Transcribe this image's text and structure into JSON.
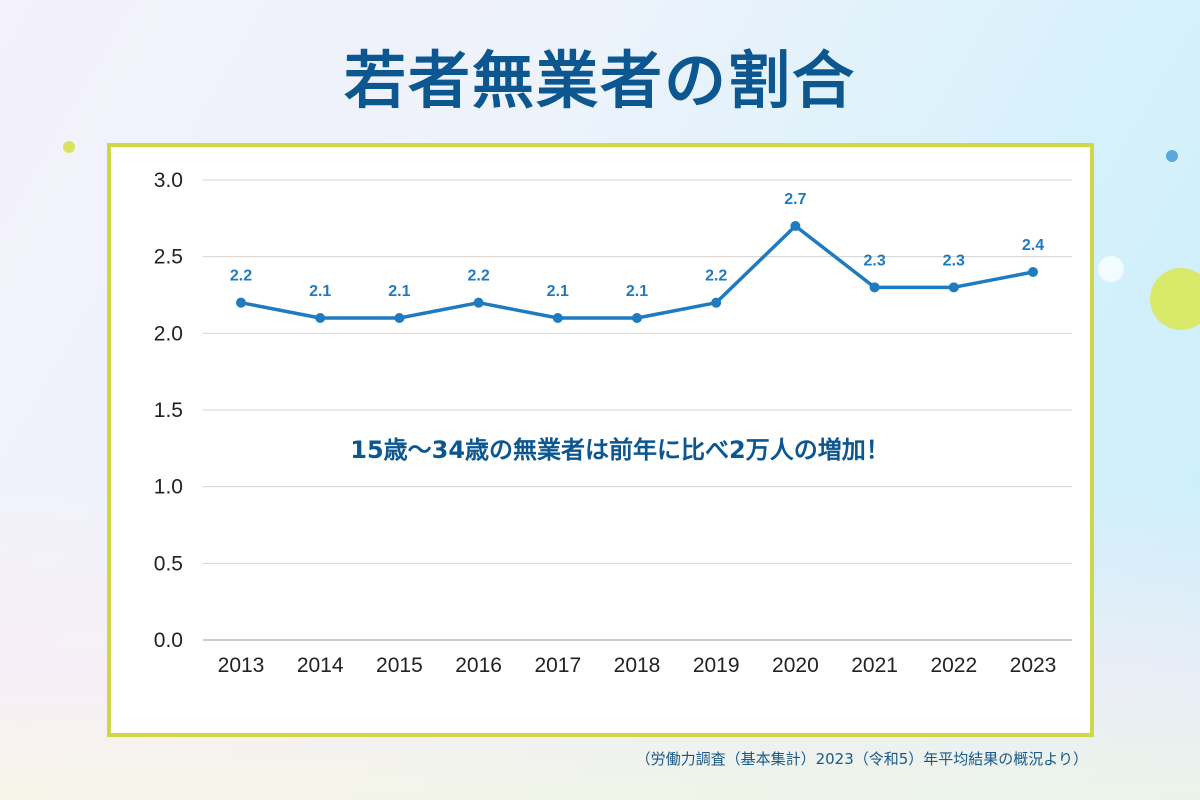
{
  "title": "若者無業者の割合",
  "source": "（労働力調査（基本集計）2023（令和5）年平均結果の概況より）",
  "colors": {
    "line": "#1f7bbf",
    "label": "#1f7bbf",
    "title": "#0d5790",
    "frame": "#cdd747"
  },
  "chart_data": {
    "type": "line",
    "title": "若者無業者の割合",
    "annotation": "15歳〜34歳の無業者は前年に比べ2万人の増加！",
    "categories": [
      "2013",
      "2014",
      "2015",
      "2016",
      "2017",
      "2018",
      "2019",
      "2020",
      "2021",
      "2022",
      "2023"
    ],
    "values": [
      2.2,
      2.1,
      2.1,
      2.2,
      2.1,
      2.1,
      2.2,
      2.7,
      2.3,
      2.3,
      2.4
    ],
    "data_labels": [
      "2.2",
      "2.1",
      "2.1",
      "2.2",
      "2.1",
      "2.1",
      "2.2",
      "2.7",
      "2.3",
      "2.3",
      "2.4"
    ],
    "yticks": [
      "0.0",
      "0.5",
      "1.0",
      "1.5",
      "2.0",
      "2.5",
      "3.0"
    ],
    "ylim": [
      0,
      3.0
    ],
    "grid": true,
    "xlabel": "",
    "ylabel": ""
  }
}
